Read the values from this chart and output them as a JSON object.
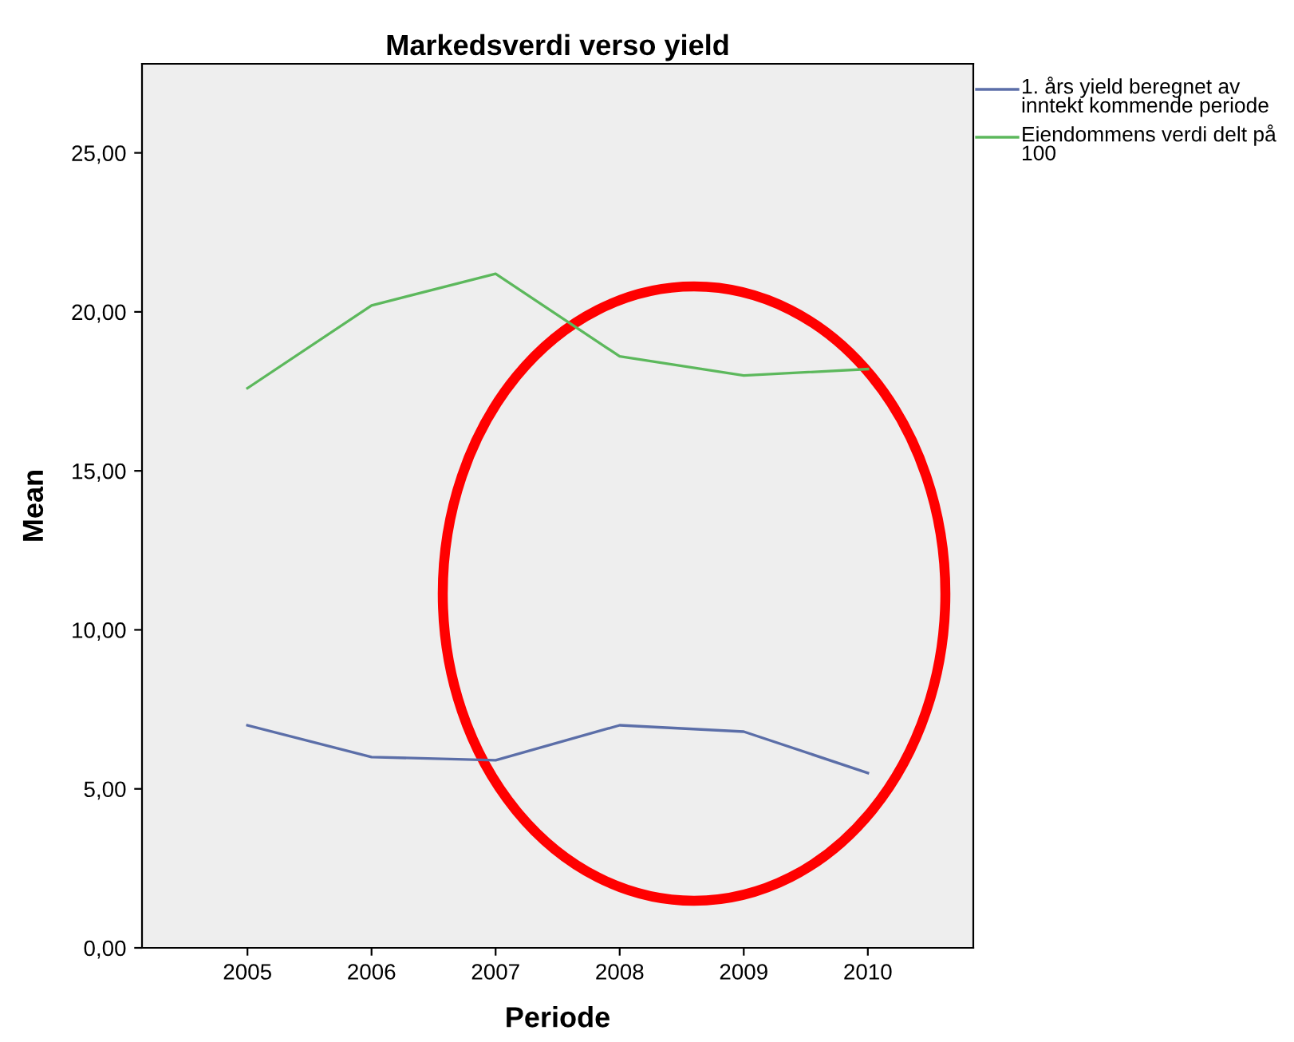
{
  "chart_data": {
    "type": "line",
    "title": "Markedsverdi verso yield",
    "xlabel": "Periode",
    "ylabel": "Mean",
    "categories": [
      "2005",
      "2006",
      "2007",
      "2008",
      "2009",
      "2010"
    ],
    "series": [
      {
        "name": "1. års yield beregnet av inntekt kommende periode",
        "color": "#5b6ea8",
        "values": [
          7.0,
          6.0,
          5.9,
          7.0,
          6.8,
          5.5
        ]
      },
      {
        "name": "Eiendommens verdi delt på 100",
        "color": "#5cb85c",
        "values": [
          17.6,
          20.2,
          21.2,
          18.6,
          18.0,
          18.2
        ]
      }
    ],
    "ylim": [
      0,
      27.8
    ],
    "yticks": [
      {
        "value": 0,
        "label": "0,00"
      },
      {
        "value": 5,
        "label": "5,00"
      },
      {
        "value": 10,
        "label": "10,00"
      },
      {
        "value": 15,
        "label": "15,00"
      },
      {
        "value": 20,
        "label": "20,00"
      },
      {
        "value": 25,
        "label": "25,00"
      }
    ],
    "grid": false,
    "legend": "top right",
    "marker": "none",
    "line_style": "solid"
  }
}
